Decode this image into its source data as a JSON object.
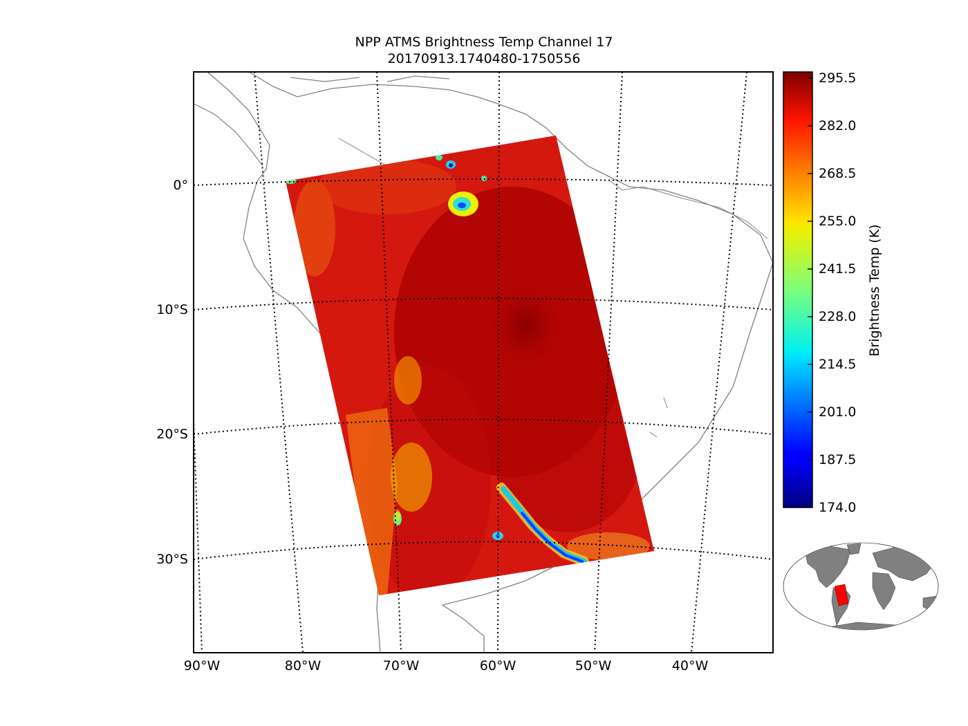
{
  "title": {
    "line1": "NPP ATMS Brightness Temp Channel 17",
    "line2": "20170913.1740480-1750556"
  },
  "axes": {
    "lon_ticks": [
      "90°W",
      "80°W",
      "70°W",
      "60°W",
      "50°W",
      "40°W"
    ],
    "lat_ticks": [
      "0°",
      "10°S",
      "20°S",
      "30°S"
    ],
    "lon_range": [
      -90,
      -32
    ],
    "lat_range": [
      -37,
      9
    ],
    "gridlines": "dotted"
  },
  "colorbar": {
    "label": "Brightness Temp (K)",
    "ticks": [
      "295.5",
      "282.0",
      "268.5",
      "255.0",
      "241.5",
      "228.0",
      "214.5",
      "201.0",
      "187.5",
      "174.0"
    ],
    "vmin": 174.0,
    "vmax": 295.5,
    "colormap": "jet"
  },
  "swath": {
    "color_dominant": "#d01010",
    "color_warmest": "#9a0000",
    "color_cold": "#0030ff"
  },
  "inset": {
    "land_color": "#808080",
    "swath_color": "#ff0000"
  },
  "coastline_color": "#808080"
}
